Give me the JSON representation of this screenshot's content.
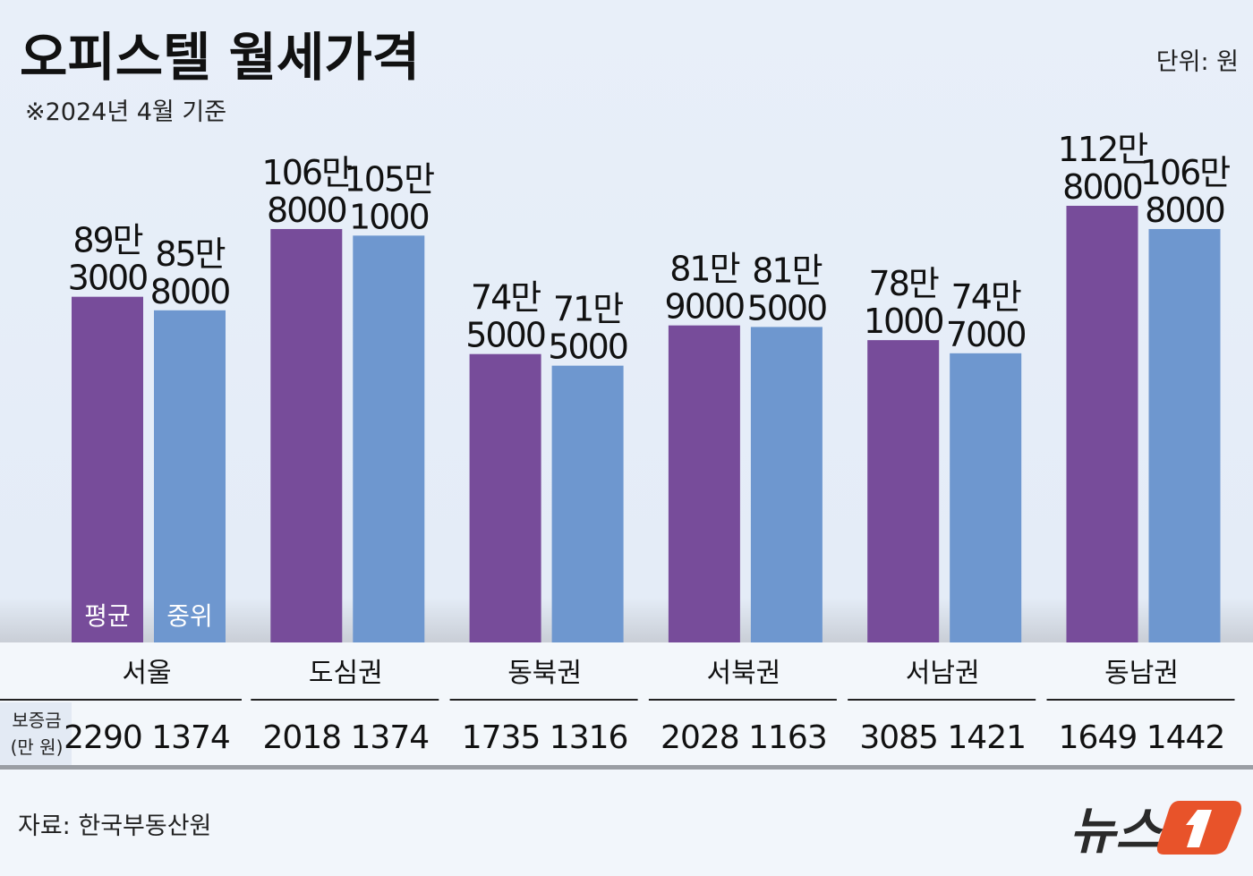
{
  "chart_data": {
    "type": "bar",
    "title": "오피스텔 월세가격",
    "subtitle": "※2024년 4월 기준",
    "unit_label": "단위: 원",
    "categories": [
      "서울",
      "도심권",
      "동북권",
      "서북권",
      "서남권",
      "동남권"
    ],
    "series": [
      {
        "name": "평균",
        "color": "#774c9a",
        "values": [
          893000,
          1068000,
          745000,
          819000,
          781000,
          1128000
        ]
      },
      {
        "name": "중위",
        "color": "#6e97cf",
        "values": [
          858000,
          1051000,
          715000,
          815000,
          747000,
          1068000
        ]
      }
    ],
    "ylim": [
      0,
      1128000
    ],
    "grid": false,
    "deposit": {
      "label_line1": "보증금",
      "label_line2": "(만 원)",
      "values": [
        [
          "2290",
          "1374"
        ],
        [
          "2018",
          "1374"
        ],
        [
          "1735",
          "1316"
        ],
        [
          "2028",
          "1163"
        ],
        [
          "3085",
          "1421"
        ],
        [
          "1649",
          "1442"
        ]
      ]
    }
  },
  "source": "자료: 한국부동산원",
  "logo": {
    "text": "뉴스1",
    "accent": "#e8532a"
  }
}
